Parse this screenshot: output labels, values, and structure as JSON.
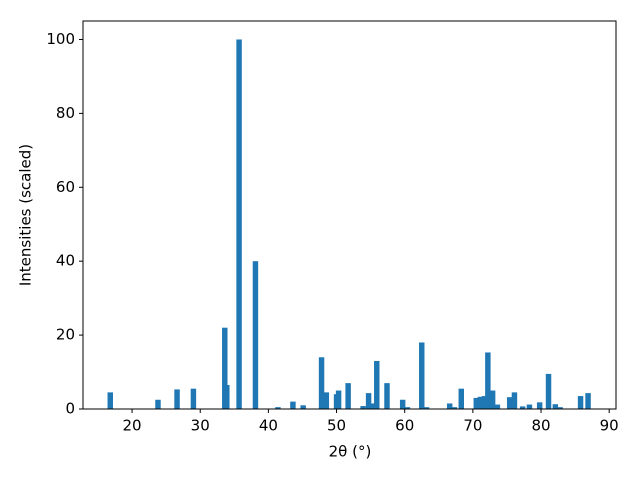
{
  "chart_data": {
    "type": "bar",
    "xlabel": "2θ (°)",
    "ylabel": "Intensities (scaled)",
    "color": "#1f77b4",
    "x": [
      16.8,
      23.8,
      26.6,
      29.0,
      33.6,
      33.9,
      35.7,
      38.1,
      41.4,
      43.6,
      45.1,
      47.8,
      48.5,
      50.0,
      50.3,
      51.7,
      53.9,
      54.7,
      55.2,
      55.9,
      57.4,
      59.7,
      60.4,
      62.5,
      63.2,
      66.6,
      67.3,
      68.3,
      70.5,
      71.1,
      71.7,
      72.2,
      72.9,
      73.6,
      75.4,
      76.1,
      77.3,
      78.3,
      79.8,
      81.1,
      82.1,
      82.8,
      85.8,
      86.9
    ],
    "values": [
      4.5,
      2.5,
      5.3,
      5.5,
      22,
      6.5,
      100,
      40,
      0.5,
      2,
      1,
      14,
      4.5,
      4,
      5,
      7,
      0.8,
      4.3,
      1.5,
      13,
      7,
      2.5,
      0.5,
      18,
      0.5,
      1.5,
      0.5,
      5.5,
      3,
      3.3,
      3.5,
      15.3,
      5,
      1.2,
      3.2,
      4.5,
      0.7,
      1.2,
      1.8,
      9.5,
      1.3,
      0.5,
      3.5,
      4.3
    ],
    "xlim": [
      12.8,
      91.0
    ],
    "ylim": [
      0,
      105
    ],
    "xticks": [
      20,
      30,
      40,
      50,
      60,
      70,
      80,
      90
    ],
    "yticks": [
      0,
      20,
      40,
      60,
      80,
      100
    ]
  }
}
